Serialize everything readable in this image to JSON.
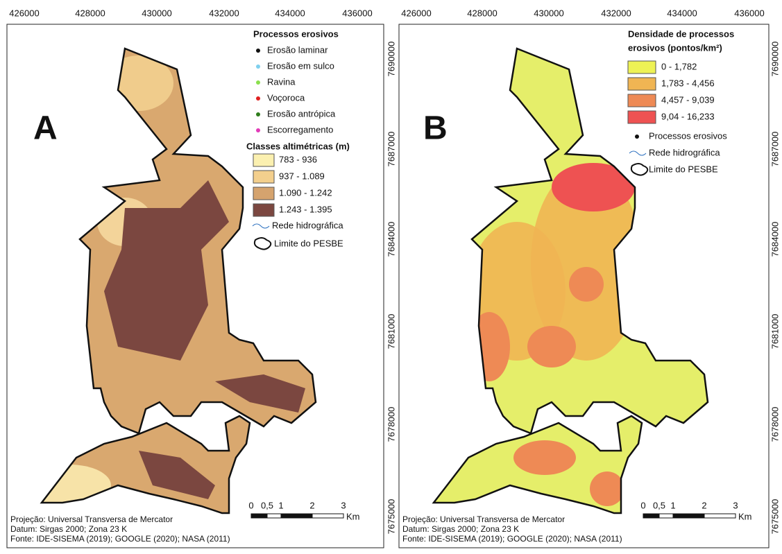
{
  "x_ticks": [
    "426000",
    "428000",
    "430000",
    "432000",
    "434000",
    "436000"
  ],
  "y_ticks": [
    "7690000",
    "7687000",
    "7684000",
    "7681000",
    "7678000",
    "7675000"
  ],
  "panels": [
    {
      "label": "A",
      "legend_title": "Processos erosivos",
      "points": [
        {
          "name": "Erosão laminar",
          "color": "#111111"
        },
        {
          "name": "Erosão em sulco",
          "color": "#7fd0ee"
        },
        {
          "name": "Ravina",
          "color": "#8be04e"
        },
        {
          "name": "Voçoroca",
          "color": "#e02020"
        },
        {
          "name": "Erosão antrópica",
          "color": "#2f7d1c"
        },
        {
          "name": "Escorregamento",
          "color": "#e23bb8"
        }
      ],
      "classes_title": "Classes altimétricas (m)",
      "classes": [
        {
          "name": "783 - 936",
          "color": "#fbf0b0"
        },
        {
          "name": "937 - 1.089",
          "color": "#f3cf8d"
        },
        {
          "name": "1.090 - 1.242",
          "color": "#d5a36e"
        },
        {
          "name": "1.243 - 1.395",
          "color": "#7b4740"
        }
      ],
      "river": "Rede hidrográfica",
      "boundary": "Limite do PESBE"
    },
    {
      "label": "B",
      "legend_title": [
        "Densidade de processos",
        "erosivos (pontos/km²)"
      ],
      "classes": [
        {
          "name": "0 - 1,782",
          "color": "#eef255"
        },
        {
          "name": "1,783 - 4,456",
          "color": "#f0b553"
        },
        {
          "name": "4,457 - 9,039",
          "color": "#ee8a55"
        },
        {
          "name": "9,04 - 16,233",
          "color": "#ee5252"
        }
      ],
      "points_label": "Processos erosivos",
      "river": "Rede hidrográfica",
      "boundary": "Limite do PESBE"
    }
  ],
  "scale": {
    "labels": [
      "0",
      "0,5",
      "1",
      "2",
      "3"
    ],
    "unit": "Km"
  },
  "footer": [
    "Projeção: Universal Transversa de Mercator",
    "Datum: Sirgas 2000; Zona 23 K",
    "Fonte: IDE-SISEMA (2019); GOOGLE (2020); NASA (2011)"
  ]
}
